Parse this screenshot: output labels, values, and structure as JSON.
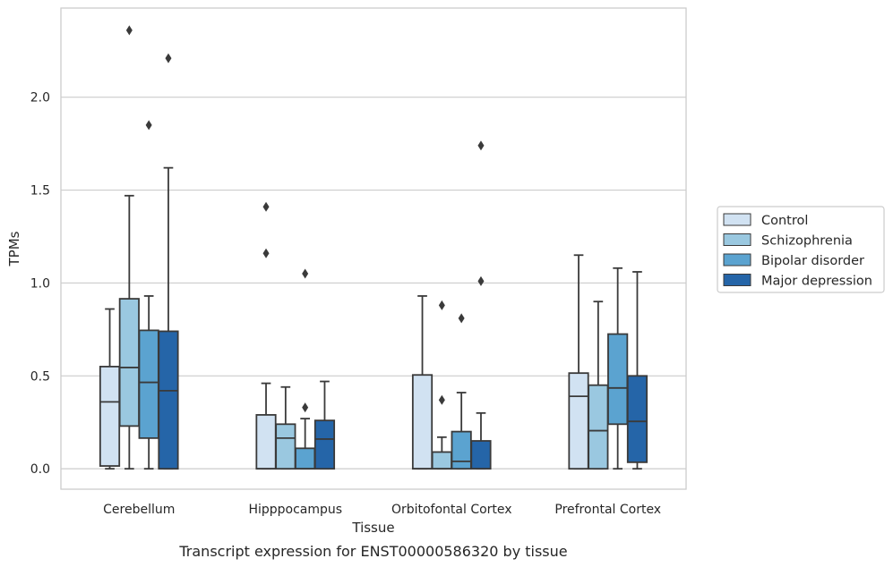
{
  "caption": "Transcript expression for ENST00000586320 by tissue",
  "chart_data": {
    "type": "box",
    "xlabel": "Tissue",
    "ylabel": "TPMs",
    "ylim": [
      -0.11,
      2.48
    ],
    "yticks": [
      0.0,
      0.5,
      1.0,
      1.5,
      2.0
    ],
    "ytick_labels": [
      "0.0",
      "0.5",
      "1.0",
      "1.5",
      "2.0"
    ],
    "grid": "horizontal",
    "legend_position": "right",
    "categories": [
      "Cerebellum",
      "Hipppocampus",
      "Orbitofontal Cortex",
      "Prefrontal Cortex"
    ],
    "series": [
      {
        "name": "Control",
        "color": "#d1e2f2",
        "boxes": [
          {
            "whislo": 0.0,
            "q1": 0.015,
            "med": 0.36,
            "q3": 0.55,
            "whishi": 0.86,
            "fliers": []
          },
          {
            "whislo": 0.0,
            "q1": 0.0,
            "med": 0.0,
            "q3": 0.29,
            "whishi": 0.46,
            "fliers": [
              1.16,
              1.41
            ]
          },
          {
            "whislo": 0.0,
            "q1": 0.0,
            "med": 0.0,
            "q3": 0.505,
            "whishi": 0.93,
            "fliers": []
          },
          {
            "whislo": 0.0,
            "q1": 0.0,
            "med": 0.39,
            "q3": 0.515,
            "whishi": 1.15,
            "fliers": []
          }
        ]
      },
      {
        "name": "Schizophrenia",
        "color": "#9ac8e0",
        "boxes": [
          {
            "whislo": 0.0,
            "q1": 0.23,
            "med": 0.545,
            "q3": 0.915,
            "whishi": 1.47,
            "fliers": [
              2.36
            ]
          },
          {
            "whislo": 0.0,
            "q1": 0.0,
            "med": 0.165,
            "q3": 0.24,
            "whishi": 0.44,
            "fliers": []
          },
          {
            "whislo": 0.0,
            "q1": 0.0,
            "med": 0.0,
            "q3": 0.09,
            "whishi": 0.17,
            "fliers": [
              0.37,
              0.88
            ]
          },
          {
            "whislo": 0.0,
            "q1": 0.0,
            "med": 0.205,
            "q3": 0.45,
            "whishi": 0.9,
            "fliers": []
          }
        ]
      },
      {
        "name": "Bipolar disorder",
        "color": "#5ba3d0",
        "boxes": [
          {
            "whislo": 0.0,
            "q1": 0.165,
            "med": 0.465,
            "q3": 0.745,
            "whishi": 0.93,
            "fliers": [
              1.85
            ]
          },
          {
            "whislo": 0.0,
            "q1": 0.0,
            "med": 0.0,
            "q3": 0.11,
            "whishi": 0.27,
            "fliers": [
              0.33,
              1.05
            ]
          },
          {
            "whislo": 0.0,
            "q1": 0.0,
            "med": 0.04,
            "q3": 0.2,
            "whishi": 0.41,
            "fliers": [
              0.81
            ]
          },
          {
            "whislo": 0.0,
            "q1": 0.24,
            "med": 0.435,
            "q3": 0.725,
            "whishi": 1.08,
            "fliers": []
          }
        ]
      },
      {
        "name": "Major depression",
        "color": "#2565a8",
        "boxes": [
          {
            "whislo": 0.0,
            "q1": 0.0,
            "med": 0.42,
            "q3": 0.74,
            "whishi": 1.62,
            "fliers": [
              2.21
            ]
          },
          {
            "whislo": 0.0,
            "q1": 0.0,
            "med": 0.16,
            "q3": 0.26,
            "whishi": 0.47,
            "fliers": []
          },
          {
            "whislo": 0.0,
            "q1": 0.0,
            "med": 0.0,
            "q3": 0.15,
            "whishi": 0.3,
            "fliers": [
              1.01,
              1.74
            ]
          },
          {
            "whislo": 0.0,
            "q1": 0.035,
            "med": 0.255,
            "q3": 0.5,
            "whishi": 1.06,
            "fliers": []
          }
        ]
      }
    ]
  }
}
